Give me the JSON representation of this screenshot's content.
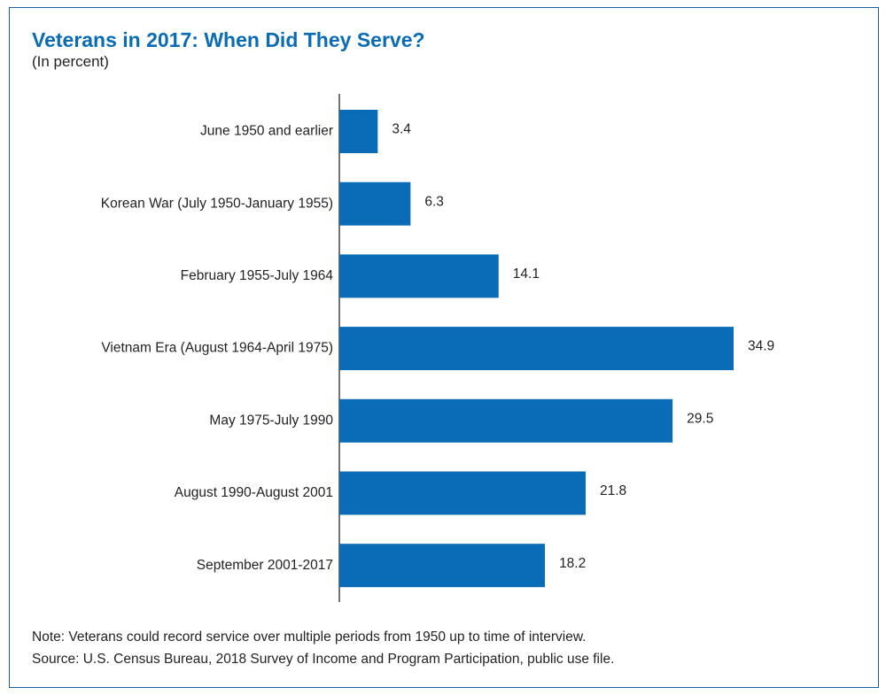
{
  "colors": {
    "bar": "#0a6cb6",
    "title": "#0a6cb6",
    "axis": "#444444",
    "border": "#1d5c9c"
  },
  "chart_data": {
    "type": "bar",
    "orientation": "horizontal",
    "title": "Veterans in 2017: When Did They Serve?",
    "subtitle": "(In percent)",
    "xlabel": "",
    "ylabel": "",
    "xlim": [
      0,
      35
    ],
    "grid": false,
    "categories": [
      "June 1950 and earlier",
      "Korean War (July 1950-January 1955)",
      "February 1955-July 1964",
      "Vietnam Era (August 1964-April 1975)",
      "May 1975-July 1990",
      "August 1990-August 2001",
      "September 2001-2017"
    ],
    "values": [
      3.4,
      6.3,
      14.1,
      34.9,
      29.5,
      21.8,
      18.2
    ],
    "value_labels": [
      "3.4",
      "6.3",
      "14.1",
      "34.9",
      "29.5",
      "21.8",
      "18.2"
    ]
  },
  "footer": {
    "note": "Note: Veterans could record service over multiple periods from 1950 up to time of interview.",
    "source": "Source: U.S. Census Bureau, 2018 Survey of Income and Program Participation, public use file."
  }
}
